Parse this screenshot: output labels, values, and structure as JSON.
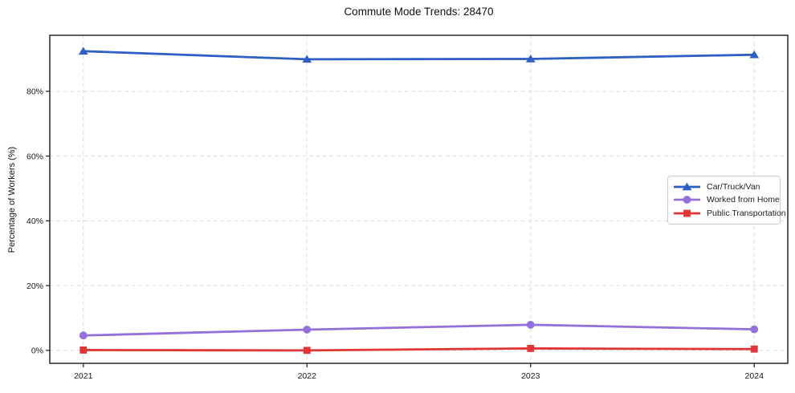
{
  "chart_data": {
    "type": "line",
    "title": "Commute Mode Trends: 28470",
    "xlabel": "",
    "ylabel": "Percentage of Workers (%)",
    "categories": [
      "2021",
      "2022",
      "2023",
      "2024"
    ],
    "x_values": [
      2021,
      2022,
      2023,
      2024
    ],
    "series": [
      {
        "name": "Car/Truck/Van",
        "color": "#2d5fc4",
        "marker": "triangle",
        "values": [
          92.4,
          89.9,
          90.0,
          91.3
        ]
      },
      {
        "name": "Worked from Home",
        "color": "#9370db",
        "marker": "circle",
        "values": [
          4.6,
          6.4,
          7.9,
          6.5
        ]
      },
      {
        "name": "Public Transportation",
        "color": "#e23535",
        "marker": "square",
        "values": [
          0.1,
          0.0,
          0.6,
          0.4
        ]
      }
    ],
    "xlim": [
      2020.85,
      2024.15
    ],
    "ylim": [
      -4.0,
      97.3
    ],
    "yticks": {
      "values": [
        0,
        20,
        40,
        60,
        80
      ],
      "labels": [
        "0%",
        "20%",
        "40%",
        "60%",
        "80%"
      ]
    },
    "grid": true,
    "grid_style": "dashed",
    "legend_position": "right-center",
    "colors": {
      "background": "#ffffff",
      "grid": "#d9d9d9",
      "spine": "#1a1a1a",
      "tick_label": "#1a1a1a"
    }
  }
}
